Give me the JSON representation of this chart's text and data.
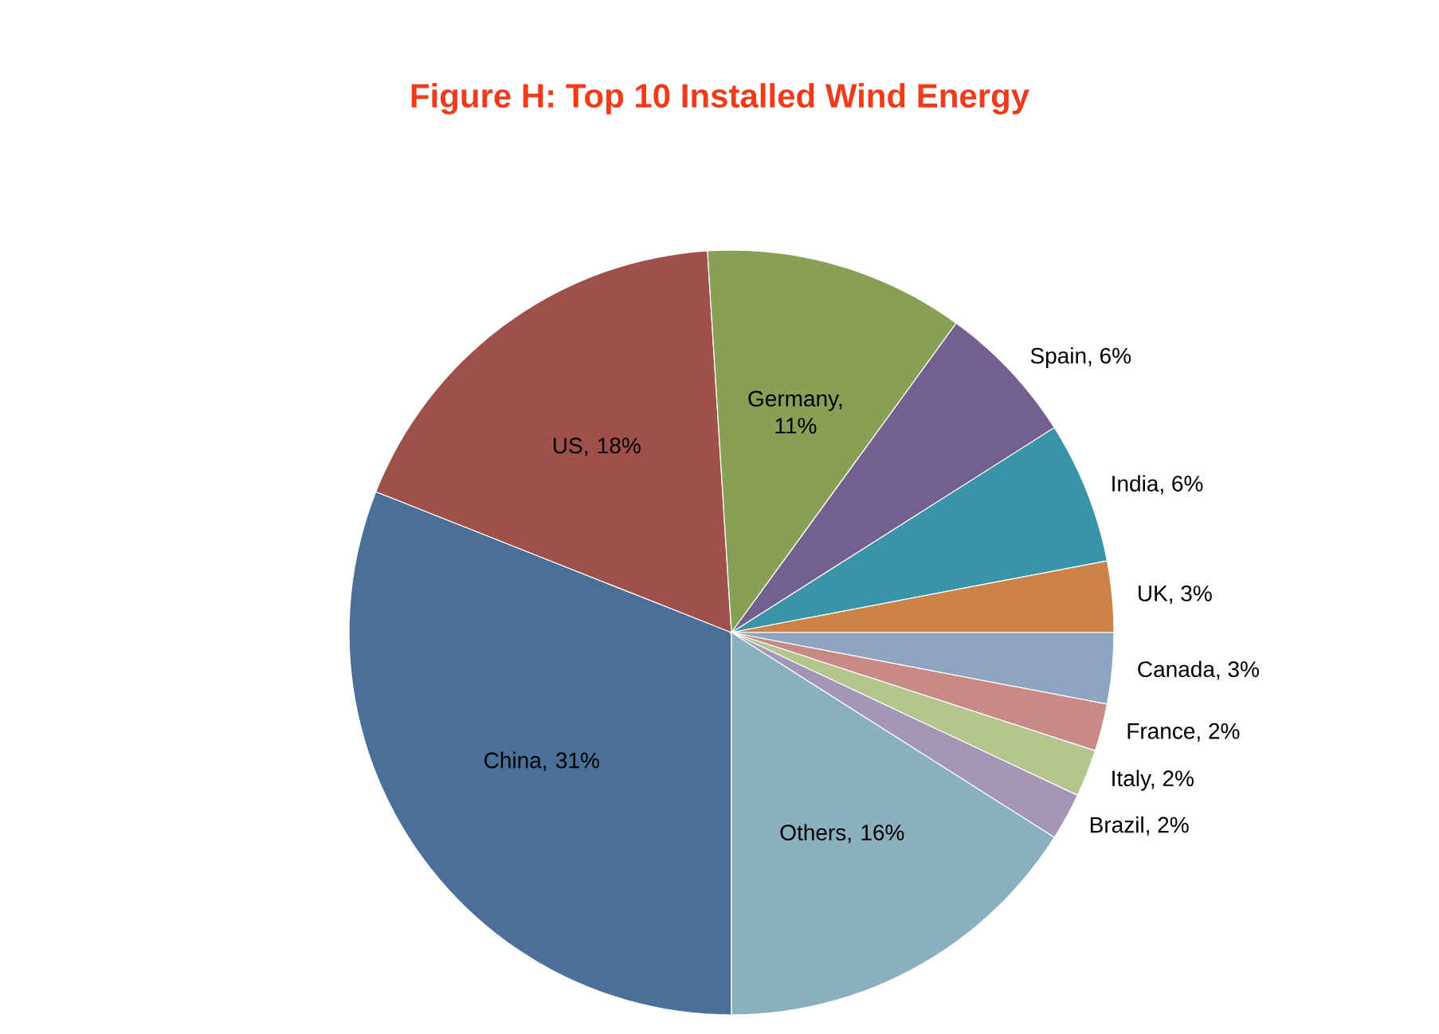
{
  "chart_data": {
    "type": "pie",
    "title": "Figure H: Top 10 Installed Wind Energy",
    "categories": [
      "China, 31%",
      "US, 18%",
      "Germany, 11%",
      "Spain, 6%",
      "India, 6%",
      "UK, 3%",
      "Canada, 3%",
      "France, 2%",
      "Italy, 2%",
      "Brazil, 2%",
      "Others, 16%"
    ],
    "values": [
      31,
      18,
      11,
      6,
      6,
      3,
      3,
      2,
      2,
      2,
      16
    ],
    "colors": [
      "#4a7099",
      "#a0504a",
      "#87a055",
      "#74608e",
      "#3b93a8",
      "#cc8446",
      "#8fa4c0",
      "#c98986",
      "#b4c68e",
      "#a396b6",
      "#8ab0c0"
    ]
  }
}
